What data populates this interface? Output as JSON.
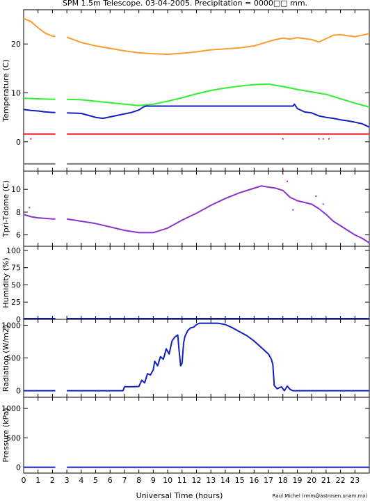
{
  "title": "SPM 1.5m Telescope. 03-04-2005. Precipitation = 0000□□ mm.",
  "credit": "Raul Michel (rmm@astrosen.unam.mx)",
  "chart_data": [
    {
      "type": "line",
      "ylabel": "Temperature (C)",
      "ylim": [
        -6,
        27
      ],
      "yticks": [
        0,
        10,
        20
      ],
      "xlim": [
        0,
        24
      ],
      "series": [
        {
          "color": "#ff9a2e",
          "gap": [
            2.2,
            3.0
          ],
          "x": [
            0,
            0.5,
            1,
            1.5,
            2,
            3,
            4,
            5,
            6,
            7,
            8,
            9,
            10,
            11,
            12,
            13,
            14,
            15,
            16,
            17,
            17.5,
            18,
            18.5,
            19,
            20,
            20.5,
            21,
            21.5,
            22,
            23,
            24
          ],
          "y": [
            25.2,
            24.6,
            23.3,
            22.2,
            21.6,
            21.4,
            20.3,
            19.6,
            19.1,
            18.6,
            18.2,
            18.0,
            17.9,
            18.1,
            18.4,
            18.8,
            19.0,
            19.2,
            19.6,
            20.5,
            20.9,
            21.2,
            21.0,
            21.3,
            20.9,
            20.4,
            21.1,
            21.8,
            21.9,
            21.5,
            22.1
          ]
        },
        {
          "color": "#33ee33",
          "gap": [
            2.2,
            3.0
          ],
          "x": [
            0,
            1,
            2,
            3,
            4,
            5,
            6,
            7,
            8,
            9,
            10,
            11,
            12,
            13,
            14,
            15,
            16,
            17,
            18,
            19,
            20,
            21,
            22,
            23,
            24
          ],
          "y": [
            8.9,
            8.8,
            8.7,
            8.7,
            8.6,
            8.3,
            8.0,
            7.7,
            7.4,
            7.7,
            8.3,
            9.0,
            9.8,
            10.5,
            11.0,
            11.4,
            11.7,
            11.8,
            11.3,
            10.7,
            10.2,
            9.7,
            8.8,
            7.9,
            7.1
          ]
        },
        {
          "color": "#1020c0",
          "gap": [
            2.2,
            3.0
          ],
          "x": [
            0,
            0.5,
            1,
            1.5,
            2,
            3,
            4,
            4.5,
            5,
            5.5,
            6,
            6.5,
            7,
            7.5,
            8,
            8.3,
            8.5,
            9,
            10,
            12,
            14,
            16,
            18,
            18.7,
            18.8,
            19,
            19.5,
            20,
            20.5,
            21,
            21.5,
            22,
            22.5,
            23,
            23.5,
            24
          ],
          "y": [
            6.6,
            6.4,
            6.3,
            6.1,
            6.0,
            5.9,
            5.8,
            5.4,
            5.0,
            4.8,
            5.1,
            5.4,
            5.7,
            6.0,
            6.5,
            7.1,
            7.3,
            7.3,
            7.3,
            7.3,
            7.3,
            7.3,
            7.3,
            7.3,
            7.7,
            6.8,
            6.1,
            5.9,
            5.3,
            5.0,
            4.8,
            4.5,
            4.3,
            4.0,
            3.7,
            3.0
          ]
        },
        {
          "color": "#ee1111",
          "gap": [
            2.2,
            3.0
          ],
          "x": [
            0,
            24
          ],
          "y": [
            1.6,
            1.6
          ]
        },
        {
          "color": "#666666",
          "gap": [
            2.2,
            3.0
          ],
          "x": [
            0,
            24
          ],
          "y": [
            -4.5,
            -4.5
          ]
        }
      ],
      "points": [
        {
          "color": "#cc2222",
          "x": [
            0.5,
            18,
            20.5,
            20.8,
            21.2
          ],
          "y": [
            0.6,
            0.6,
            0.6,
            0.6,
            0.6
          ]
        },
        {
          "color": "#cc2222",
          "x": [
            18
          ],
          "y": [
            -5.7
          ]
        }
      ]
    },
    {
      "type": "line",
      "ylabel": "Tpri-Tdome (C)",
      "ylim": [
        5,
        11.6
      ],
      "yticks": [
        6,
        8,
        10
      ],
      "xlim": [
        0,
        24
      ],
      "series": [
        {
          "color": "#8833cc",
          "gap": [
            2.2,
            3.0
          ],
          "x": [
            0,
            0.5,
            1,
            1.5,
            2,
            3,
            4,
            5,
            6,
            7,
            8,
            9,
            10,
            11,
            12,
            13,
            14,
            15,
            16,
            16.5,
            17,
            17.5,
            18,
            18.5,
            19,
            20,
            20.5,
            21,
            21.5,
            22,
            22.5,
            23,
            23.5,
            24
          ],
          "y": [
            7.8,
            7.6,
            7.5,
            7.45,
            7.4,
            7.4,
            7.2,
            7.0,
            6.7,
            6.4,
            6.2,
            6.2,
            6.6,
            7.3,
            7.9,
            8.6,
            9.2,
            9.7,
            10.1,
            10.3,
            10.2,
            10.1,
            9.9,
            9.3,
            9.0,
            8.7,
            8.3,
            7.8,
            7.2,
            6.8,
            6.4,
            6.0,
            5.7,
            5.3
          ]
        }
      ],
      "points": [
        {
          "color": "#8833cc",
          "x": [
            0.4,
            18.3,
            18.7,
            20.3,
            20.8
          ],
          "y": [
            8.4,
            10.7,
            8.2,
            9.4,
            8.7
          ]
        }
      ]
    },
    {
      "type": "line",
      "ylabel": "Humidity (%)",
      "ylim": [
        0,
        106
      ],
      "yticks": [
        0,
        25,
        50,
        75,
        100
      ],
      "xlim": [
        0,
        24
      ],
      "series": [
        {
          "color": "#1020c0",
          "gap": [
            2.2,
            3.0
          ],
          "x": [
            0,
            24
          ],
          "y": [
            1,
            1
          ]
        }
      ],
      "points": []
    },
    {
      "type": "line",
      "ylabel": "Radiation (W/m2)",
      "ylim": [
        -100,
        1090
      ],
      "yticks": [
        0,
        500,
        1000
      ],
      "xlim": [
        0,
        24
      ],
      "series": [
        {
          "color": "#1020c0",
          "gap": [
            2.2,
            3.0
          ],
          "x": [
            0,
            2,
            3,
            6.9,
            7.0,
            7.5,
            8.0,
            8.2,
            8.4,
            8.6,
            8.8,
            9.0,
            9.1,
            9.3,
            9.5,
            9.7,
            9.9,
            10.1,
            10.3,
            10.5,
            10.7,
            10.8,
            10.9,
            11.0,
            11.1,
            11.2,
            11.4,
            11.6,
            11.8,
            12.0,
            12.2,
            12.5,
            13.0,
            13.5,
            14.0,
            14.5,
            15.0,
            15.5,
            16.0,
            16.5,
            17.0,
            17.2,
            17.3,
            17.4,
            17.6,
            17.9,
            18.1,
            18.3,
            18.5,
            18.7,
            24
          ],
          "y": [
            0,
            0,
            0,
            0,
            60,
            60,
            65,
            160,
            120,
            260,
            240,
            320,
            450,
            380,
            520,
            480,
            640,
            560,
            760,
            820,
            850,
            600,
            380,
            420,
            720,
            830,
            920,
            960,
            970,
            1010,
            1030,
            1030,
            1030,
            1030,
            1010,
            960,
            900,
            840,
            760,
            660,
            560,
            480,
            400,
            80,
            30,
            60,
            0,
            70,
            20,
            0,
            0
          ]
        }
      ],
      "points": []
    },
    {
      "type": "line",
      "ylabel": "Pressure (kPa)",
      "ylim": [
        -100,
        1190
      ],
      "yticks": [
        0,
        500,
        1000
      ],
      "xlim": [
        0,
        24
      ],
      "series": [
        {
          "color": "#1020c0",
          "gap": [
            2.2,
            3.0
          ],
          "x": [
            0,
            24
          ],
          "y": [
            0,
            0
          ]
        }
      ],
      "points": []
    }
  ],
  "x_axis": {
    "label": "Universal Time (hours)",
    "ticks": [
      "0",
      "1",
      "2",
      "3",
      "4",
      "5",
      "6",
      "7",
      "8",
      "9",
      "10",
      "11",
      "12",
      "13",
      "14",
      "15",
      "16",
      "17",
      "18",
      "19",
      "20",
      "21",
      "22",
      "23"
    ]
  }
}
